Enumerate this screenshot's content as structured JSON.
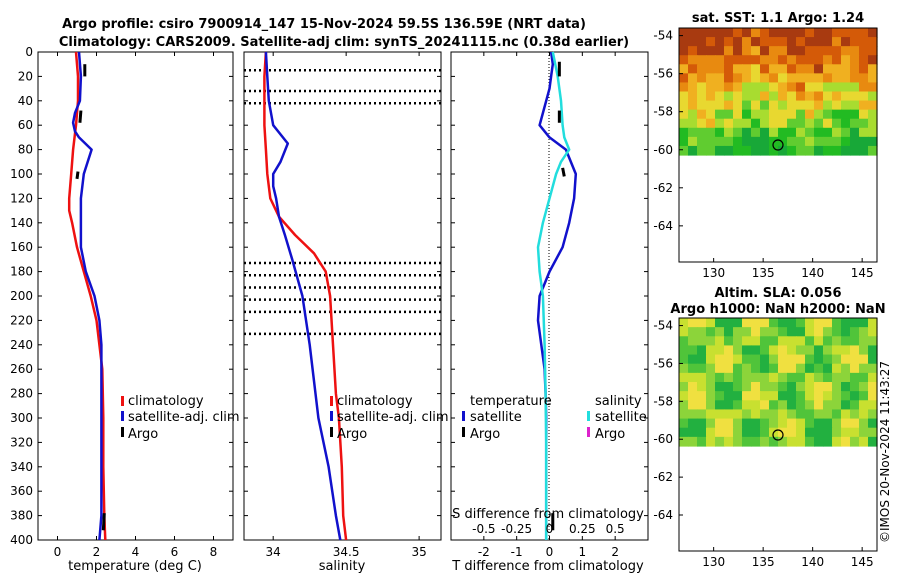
{
  "titles": {
    "line1": "Argo profile: csiro 7900914_147 15-Nov-2024 59.5S 136.59E (NRT data)",
    "line2": "Climatology: CARS2009. Satellite-adj clim: synTS_20241115.nc (0.38d earlier)"
  },
  "colors": {
    "climatology": "#ee1111",
    "satellite": "#1111cc",
    "satellite_salinity": "#22dddd",
    "argo": "#000000",
    "argo_salinity": "#dd22cc"
  },
  "chart_data": [
    {
      "id": "temperature",
      "type": "line",
      "xlabel": "temperature (deg C)",
      "ylabel": "",
      "xlim": [
        -1,
        9
      ],
      "ylim": [
        0,
        400
      ],
      "y_reversed": true,
      "xticks": [
        "0",
        "2",
        "4",
        "6",
        "8"
      ],
      "xtick_values": [
        0,
        2,
        4,
        6,
        8
      ],
      "yticks": [
        "0",
        "20",
        "40",
        "60",
        "80",
        "100",
        "120",
        "140",
        "160",
        "180",
        "200",
        "220",
        "240",
        "260",
        "280",
        "300",
        "320",
        "340",
        "360",
        "380",
        "400"
      ],
      "series": [
        {
          "name": "climatology",
          "x": [
            0.95,
            1.05,
            1.05,
            0.95,
            0.8,
            0.7,
            0.6,
            0.6,
            0.75,
            1.0,
            1.35,
            1.7,
            2.0,
            2.15,
            2.3,
            2.35,
            2.35,
            2.35,
            2.4,
            2.45
          ],
          "y": [
            0,
            20,
            40,
            60,
            80,
            100,
            120,
            130,
            140,
            160,
            180,
            200,
            220,
            240,
            260,
            300,
            320,
            340,
            380,
            400
          ]
        },
        {
          "name": "satellite-adj. clim",
          "x": [
            1.1,
            1.2,
            1.15,
            0.9,
            0.8,
            0.9,
            1.1,
            1.75,
            1.35,
            1.2,
            1.2,
            1.2,
            1.45,
            1.9,
            2.15,
            2.25,
            2.25,
            2.25,
            2.25,
            2.15
          ],
          "y": [
            0,
            20,
            40,
            50,
            58,
            65,
            70,
            80,
            100,
            120,
            140,
            160,
            180,
            200,
            220,
            240,
            300,
            320,
            380,
            400
          ]
        },
        {
          "name": "Argo",
          "segments": [
            {
              "x": [
                1.4,
                1.4
              ],
              "y": [
                10,
                20
              ]
            },
            {
              "x": [
                1.2,
                1.15
              ],
              "y": [
                48,
                58
              ]
            },
            {
              "x": [
                1.05,
                1.0
              ],
              "y": [
                98,
                104
              ]
            },
            {
              "x": [
                2.4,
                2.35
              ],
              "y": [
                378,
                392
              ]
            }
          ]
        }
      ],
      "legend": {
        "entries": [
          "climatology",
          "satellite-adj. clim",
          "Argo"
        ],
        "location": "lower-right"
      }
    },
    {
      "id": "salinity",
      "type": "line",
      "xlabel": "salinity",
      "xlim": [
        33.8,
        35.15
      ],
      "ylim": [
        0,
        400
      ],
      "y_reversed": true,
      "xticks": [
        "34",
        "34.5",
        "35"
      ],
      "xtick_values": [
        34,
        34.5,
        35
      ],
      "series": [
        {
          "name": "climatology",
          "x": [
            33.95,
            33.94,
            33.94,
            33.94,
            33.95,
            33.96,
            33.98,
            34.04,
            34.15,
            34.28,
            34.36,
            34.39,
            34.41,
            34.43,
            34.45,
            34.47,
            34.48,
            34.5
          ],
          "y": [
            0,
            20,
            40,
            60,
            80,
            100,
            120,
            135,
            150,
            165,
            180,
            200,
            240,
            280,
            300,
            340,
            380,
            400
          ]
        },
        {
          "name": "satellite-adj. clim",
          "x": [
            33.95,
            33.96,
            33.97,
            34.0,
            34.1,
            34.05,
            34.0,
            34.0,
            34.02,
            34.04,
            34.08,
            34.13,
            34.2,
            34.25,
            34.29,
            34.31,
            34.38,
            34.43,
            34.46
          ],
          "y": [
            0,
            20,
            40,
            60,
            75,
            90,
            100,
            110,
            120,
            135,
            150,
            170,
            200,
            240,
            280,
            300,
            340,
            380,
            400
          ]
        },
        {
          "name": "Argo",
          "segments": []
        }
      ],
      "dotted_levels": [
        15,
        32,
        42,
        173,
        183,
        193,
        203,
        213,
        231
      ],
      "legend": {
        "entries": [
          "climatology",
          "satellite-adj. clim",
          "Argo"
        ],
        "location": "lower-center"
      }
    },
    {
      "id": "difference",
      "type": "line",
      "xlabel": "T difference from climatology",
      "xlabel_top": "S difference from climatology",
      "xlim": [
        -3,
        3
      ],
      "ylim": [
        0,
        400
      ],
      "y_reversed": true,
      "xticks": [
        "-2",
        "-1",
        "0",
        "1",
        "2"
      ],
      "xtick_values": [
        -2,
        -1,
        0,
        1,
        2
      ],
      "top_ticks": [
        "-0.5",
        "-0.25",
        "0",
        "0.25",
        "0.5"
      ],
      "top_tick_values": [
        -2,
        -1,
        0,
        1,
        2
      ],
      "series": [
        {
          "name": "temperature satellite",
          "x": [
            0.05,
            0.1,
            0.05,
            0.0,
            -0.1,
            -0.2,
            -0.3,
            0.0,
            0.5,
            0.8,
            0.75,
            0.6,
            0.4,
            0.0,
            -0.3,
            -0.35,
            -0.25,
            -0.15,
            -0.12,
            -0.1,
            -0.1,
            -0.1,
            -0.1
          ],
          "y": [
            0,
            10,
            20,
            30,
            40,
            50,
            60,
            70,
            80,
            100,
            120,
            140,
            160,
            180,
            200,
            220,
            240,
            260,
            280,
            300,
            340,
            380,
            400
          ]
        },
        {
          "name": "salinity satellite",
          "x": [
            0.1,
            0.25,
            0.35,
            0.4,
            0.45,
            0.6,
            0.35,
            0.2,
            0.0,
            -0.2,
            -0.35,
            -0.3,
            -0.2,
            -0.15,
            -0.12,
            -0.1,
            -0.1,
            -0.1
          ],
          "y": [
            0,
            20,
            40,
            60,
            70,
            80,
            90,
            100,
            120,
            140,
            160,
            180,
            200,
            240,
            280,
            320,
            360,
            400
          ]
        },
        {
          "name": "Argo temperature",
          "segments": [
            {
              "x": [
                0.3,
                0.3
              ],
              "y": [
                8,
                20
              ]
            },
            {
              "x": [
                0.3,
                0.3
              ],
              "y": [
                48,
                58
              ]
            },
            {
              "x": [
                0.4,
                0.45
              ],
              "y": [
                95,
                102
              ]
            },
            {
              "x": [
                0.1,
                0.1
              ],
              "y": [
                378,
                392
              ]
            }
          ]
        }
      ],
      "legend": {
        "temperature_header": "temperature",
        "salinity_header": "salinity",
        "temperature_entries": [
          "satellite",
          "Argo"
        ],
        "salinity_entries": [
          "satellite",
          "Argo"
        ],
        "location": "center"
      }
    }
  ],
  "maps": [
    {
      "id": "sst",
      "title": "sat. SST: 1.1 Argo: 1.24",
      "xticks": [
        "130",
        "135",
        "140",
        "145"
      ],
      "yticks": [
        "-54",
        "-56",
        "-58",
        "-60",
        "-62",
        "-64"
      ]
    },
    {
      "id": "sla",
      "title_line1": "Altim. SLA: 0.056",
      "title_line2": "Argo h1000: NaN h2000: NaN",
      "xticks": [
        "130",
        "135",
        "140",
        "145"
      ],
      "yticks": [
        "-54",
        "-56",
        "-58",
        "-60",
        "-62",
        "-64"
      ]
    }
  ],
  "watermark": "©IMOS 20-Nov-2024 11:43:27"
}
